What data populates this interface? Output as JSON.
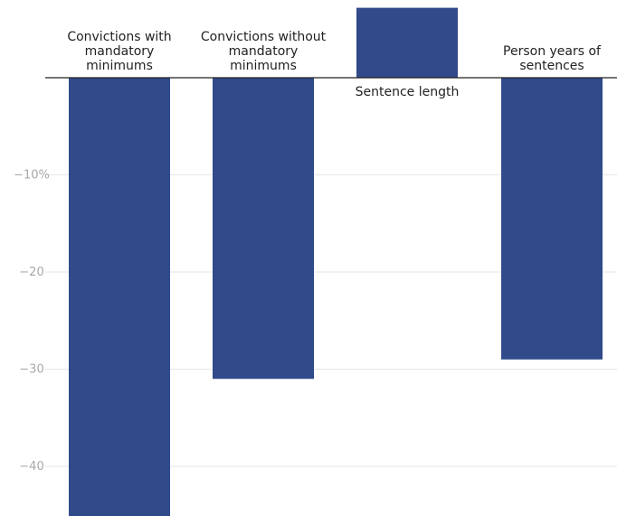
{
  "colors": {
    "bar": "#304A8A",
    "grid": "#e6e6e6",
    "zero_line": "#222222",
    "tick_text": "#a9a9a9",
    "label_text": "#222222"
  },
  "chart_data": {
    "type": "bar",
    "title": "",
    "xlabel": "",
    "ylabel": "",
    "categories": [
      "Convictions with mandatory minimums",
      "Convictions without mandatory minimums",
      "Sentence length",
      "Person years of sentences"
    ],
    "category_label_lines": [
      [
        "Convictions with",
        "mandatory",
        "minimums"
      ],
      [
        "Convictions without",
        "mandatory",
        "minimums"
      ],
      [
        "Sentence length"
      ],
      [
        "Person years of",
        "sentences"
      ]
    ],
    "values": [
      -45.5,
      -31,
      7.2,
      -29
    ],
    "ylim": [
      -45.5,
      7.2
    ],
    "y_ticks": [
      {
        "value": -10,
        "label": "−10%"
      },
      {
        "value": -20,
        "label": "−20"
      },
      {
        "value": -30,
        "label": "−30"
      },
      {
        "value": -40,
        "label": "−40"
      }
    ],
    "grid": true,
    "legend": "none"
  }
}
